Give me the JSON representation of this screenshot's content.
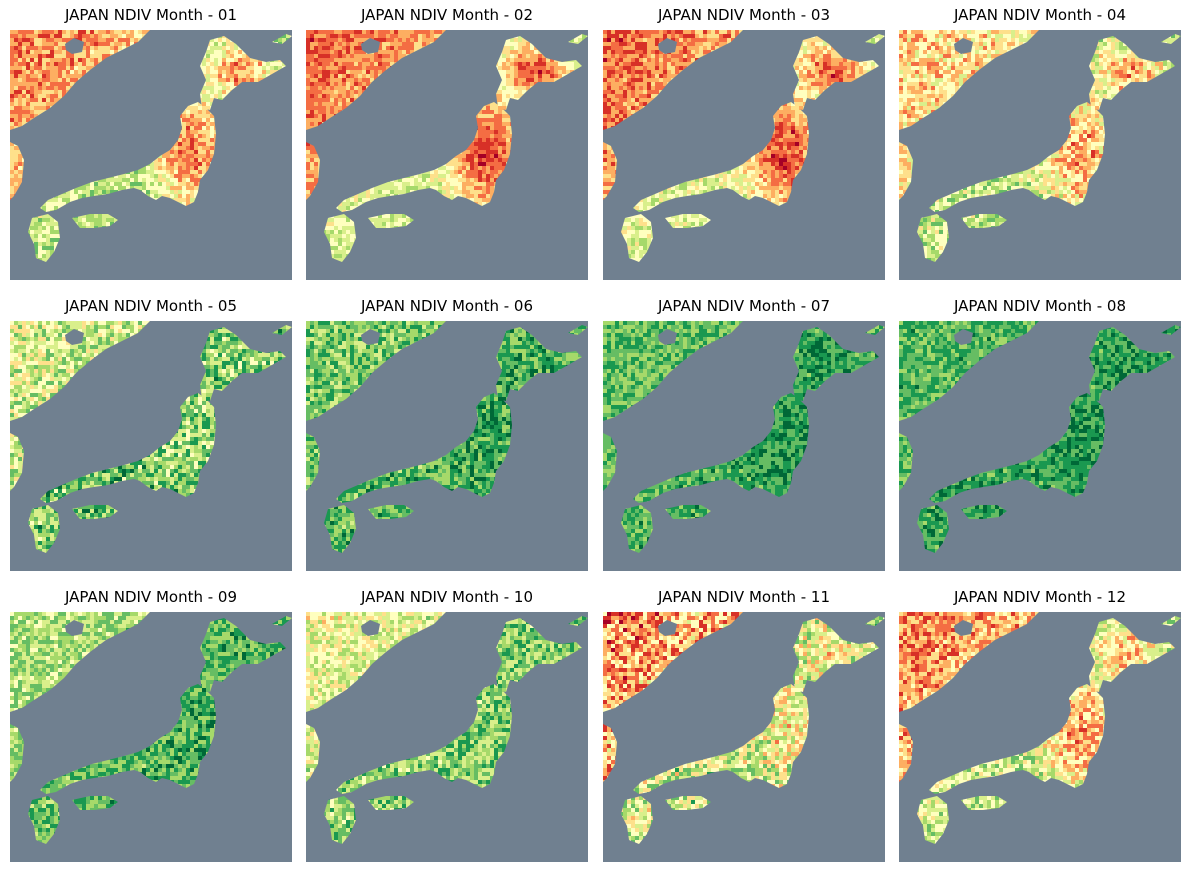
{
  "figure": {
    "panels": [
      {
        "title": "JAPAN NDIV Month - 01",
        "month": 1
      },
      {
        "title": "JAPAN NDIV Month - 02",
        "month": 2
      },
      {
        "title": "JAPAN NDIV Month - 03",
        "month": 3
      },
      {
        "title": "JAPAN NDIV Month - 04",
        "month": 4
      },
      {
        "title": "JAPAN NDIV Month - 05",
        "month": 5
      },
      {
        "title": "JAPAN NDIV Month - 06",
        "month": 6
      },
      {
        "title": "JAPAN NDIV Month - 07",
        "month": 7
      },
      {
        "title": "JAPAN NDIV Month - 08",
        "month": 8
      },
      {
        "title": "JAPAN NDIV Month - 09",
        "month": 9
      },
      {
        "title": "JAPAN NDIV Month - 10",
        "month": 10
      },
      {
        "title": "JAPAN NDIV Month - 11",
        "month": 11
      },
      {
        "title": "JAPAN NDIV Month - 12",
        "month": 12
      }
    ],
    "sea_color": "#708090",
    "colormap": [
      "#a50026",
      "#d73027",
      "#f46d43",
      "#fdae61",
      "#fee08b",
      "#ffffbf",
      "#d9ef8b",
      "#a6d96a",
      "#66bd63",
      "#1a9850",
      "#006837"
    ]
  }
}
